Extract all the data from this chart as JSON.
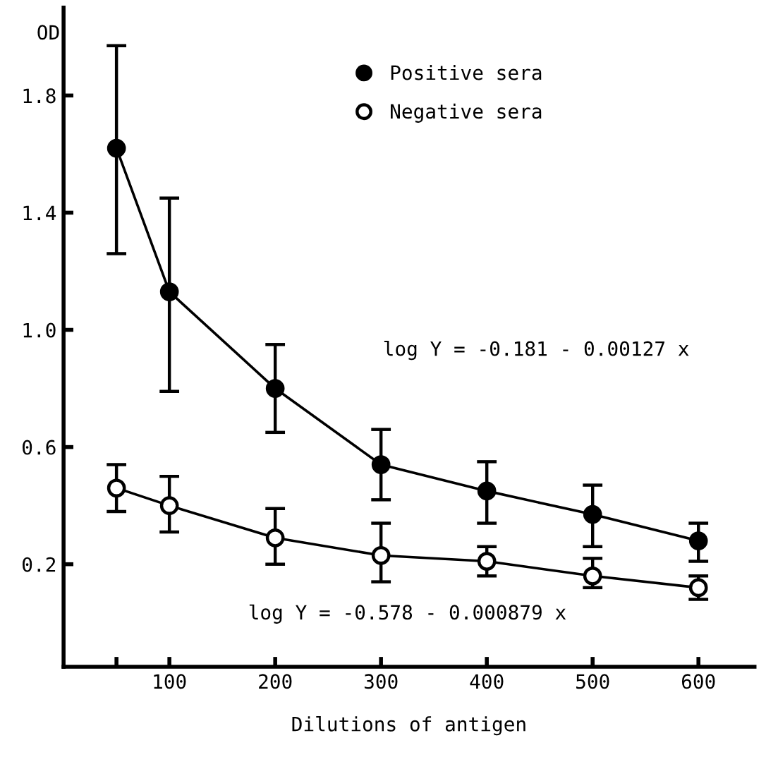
{
  "chart_data": {
    "type": "line",
    "x": [
      50,
      100,
      200,
      300,
      400,
      500,
      600
    ],
    "xlabel": "Dilutions of antigen",
    "ylabel": "OD",
    "series": [
      {
        "name": "Positive sera",
        "color": "#000000",
        "marker": "circle",
        "values": [
          1.62,
          1.13,
          0.8,
          0.54,
          0.45,
          0.37,
          0.28
        ],
        "errors": [
          [
            1.26,
            1.97
          ],
          [
            0.79,
            1.45
          ],
          [
            0.65,
            0.95
          ],
          [
            0.42,
            0.66
          ],
          [
            0.34,
            0.55
          ],
          [
            0.26,
            0.47
          ],
          [
            0.21,
            0.34
          ]
        ]
      },
      {
        "name": "Negative sera",
        "color": "#000000",
        "marker": "circle",
        "values": [
          0.46,
          0.4,
          0.29,
          0.23,
          0.21,
          0.16,
          0.12
        ],
        "errors": [
          [
            0.38,
            0.54
          ],
          [
            0.31,
            0.5
          ],
          [
            0.2,
            0.39
          ],
          [
            0.14,
            0.34
          ],
          [
            0.16,
            0.26
          ],
          [
            0.12,
            0.22
          ],
          [
            0.08,
            0.16
          ]
        ]
      }
    ],
    "annotations": [
      "log Y = -0.181 - 0.00127 x",
      "log Y = -0.578 - 0.000879 x"
    ],
    "xlim": [
      0,
      653
    ],
    "ylim": [
      -0.15,
      2.1
    ],
    "xticks": [
      {
        "value": 50,
        "label": null
      },
      100,
      200,
      300,
      400,
      500,
      600
    ],
    "yticks": [
      0.2,
      0.6,
      {
        "value": 1.0,
        "label": "1.0"
      },
      1.4,
      1.8
    ],
    "grid": false,
    "legend": "top",
    "line_style": "solid"
  }
}
